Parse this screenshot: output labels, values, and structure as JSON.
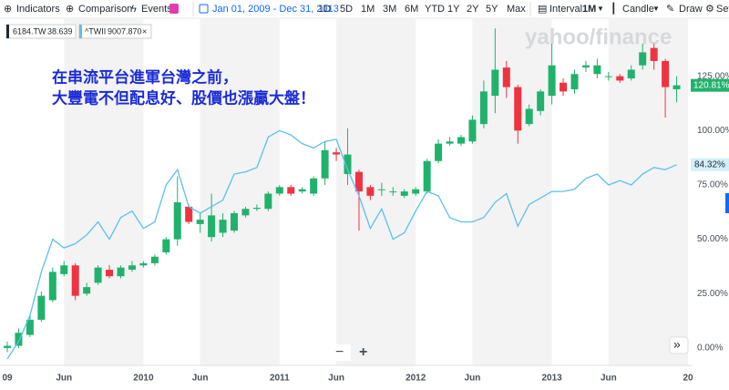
{
  "toolbar": {
    "indicators": "Indicators",
    "comparison": "Comparison",
    "events": "Events",
    "date_range": "Jan 01, 2009 - Dec 31, 2013",
    "ranges": [
      "1D",
      "5D",
      "1M",
      "3M",
      "6M",
      "YTD",
      "1Y",
      "2Y",
      "5Y",
      "Max"
    ],
    "interval_label": "Interval",
    "interval": "1M",
    "chart_type": "Candle",
    "draw": "Draw",
    "settings": "Sett"
  },
  "watermark": "yahoo/finance",
  "annotation": [
    "在串流平台進軍台灣之前，",
    "大豐電不但配息好、股價也漲贏大盤！"
  ],
  "chart_data": {
    "type": "candlestick",
    "categories": [
      "09",
      null,
      null,
      null,
      null,
      "Jun",
      null,
      null,
      null,
      null,
      null,
      null,
      "2010",
      null,
      null,
      null,
      null,
      "Jun",
      null,
      null,
      null,
      null,
      null,
      null,
      "2011",
      null,
      null,
      null,
      null,
      "Jun",
      null,
      null,
      null,
      null,
      null,
      null,
      "2012",
      null,
      null,
      null,
      null,
      "Jun",
      null,
      null,
      null,
      null,
      null,
      null,
      "2013",
      null,
      null,
      null,
      null,
      "Jun",
      null,
      null,
      null,
      null,
      null,
      null,
      "20"
    ],
    "ylim": [
      -8,
      150
    ],
    "yticks": [
      {
        "value": 0,
        "label": "0.00%"
      },
      {
        "value": 25,
        "label": "25.00%"
      },
      {
        "value": 50,
        "label": "50.00%"
      },
      {
        "value": 75,
        "label": "75.00%"
      },
      {
        "value": 100,
        "label": "100.00%"
      },
      {
        "value": 125,
        "label": "125.00%"
      }
    ],
    "grid": false,
    "series": [
      {
        "name": "6184.TW",
        "quote": 38.639,
        "color_up": "#20b26c",
        "color_down": "#ef3340",
        "open": [
          0,
          1,
          6,
          13,
          22,
          34,
          38,
          25,
          30,
          36,
          33,
          36,
          38,
          39,
          44,
          50,
          65,
          57,
          51,
          53,
          54,
          61,
          64,
          64,
          71,
          74,
          72,
          71,
          78,
          90,
          80,
          81,
          74,
          73,
          72,
          70,
          71,
          72,
          86,
          94,
          94,
          95,
          103,
          116,
          129,
          120,
          103,
          109,
          116,
          122,
          119,
          129,
          126,
          125,
          125,
          124,
          130,
          138,
          132,
          119,
          null
        ],
        "high": [
          3,
          9,
          15,
          26,
          37,
          40,
          39,
          30,
          38,
          38,
          38,
          40,
          40,
          43,
          51,
          79,
          66,
          62,
          71,
          62,
          63,
          65,
          66,
          72,
          75,
          75,
          74,
          79,
          95,
          92,
          101,
          82,
          75,
          76,
          74,
          73,
          74,
          87,
          96,
          97,
          98,
          107,
          123,
          147,
          132,
          121,
          112,
          119,
          140,
          124,
          128,
          132,
          133,
          127,
          126,
          130,
          140,
          140,
          133,
          125,
          null
        ],
        "low": [
          -2,
          0,
          5,
          12,
          21,
          33,
          22,
          24,
          29,
          32,
          32,
          35,
          37,
          38,
          43,
          47,
          57,
          53,
          49,
          51,
          53,
          60,
          63,
          63,
          70,
          70,
          71,
          70,
          75,
          86,
          75,
          54,
          68,
          70,
          70,
          69,
          70,
          71,
          85,
          93,
          93,
          94,
          101,
          108,
          115,
          94,
          102,
          107,
          112,
          116,
          117,
          127,
          124,
          123,
          122,
          123,
          128,
          128,
          106,
          113,
          null
        ],
        "close": [
          1,
          7,
          13,
          24,
          35,
          38,
          24,
          28,
          37,
          33,
          37,
          38,
          39,
          42,
          50,
          67,
          58,
          59,
          61,
          59,
          62,
          64,
          64.5,
          71,
          74,
          71,
          73,
          78,
          91,
          89,
          89,
          72,
          70,
          73,
          72,
          72,
          73,
          86,
          94,
          95,
          97,
          105,
          118,
          128,
          120,
          100,
          110,
          118,
          130,
          118,
          126,
          130,
          130,
          125,
          123,
          128,
          136,
          132,
          120,
          120.81,
          null
        ],
        "close_labels": [
          null,
          null,
          null,
          null,
          null,
          null,
          null,
          null,
          null,
          null,
          null,
          null,
          null,
          null,
          null,
          null,
          null,
          null,
          null,
          null,
          null,
          null,
          null,
          null,
          null,
          null,
          null,
          null,
          null,
          null,
          null,
          null,
          null,
          null,
          null,
          null,
          null,
          null,
          null,
          null,
          null,
          null,
          null,
          null,
          null,
          null,
          null,
          null,
          null,
          null,
          null,
          null,
          null,
          null,
          null,
          null,
          null,
          null,
          null,
          "120.81%",
          null
        ]
      },
      {
        "name": "^TWII",
        "quote": {
          "value": 9007.87,
          "label": "9007.870"
        },
        "color": "#5bc0ee",
        "values": [
          -5,
          3,
          15,
          35,
          50,
          46,
          48,
          52,
          58,
          50,
          60,
          63,
          55,
          58,
          75,
          82,
          65,
          62,
          65,
          68,
          80,
          81,
          83,
          97,
          100,
          98,
          94,
          92,
          95,
          96,
          82,
          70,
          55,
          64,
          50,
          53,
          63,
          72,
          70,
          60,
          58,
          58,
          60,
          67,
          71,
          56,
          66,
          69,
          72,
          72,
          73,
          78,
          80,
          75,
          77,
          75,
          80,
          83,
          82,
          84.32,
          null
        ],
        "value_labels": [
          null,
          null,
          null,
          null,
          null,
          null,
          null,
          null,
          null,
          null,
          null,
          null,
          null,
          null,
          null,
          null,
          null,
          null,
          null,
          null,
          null,
          null,
          null,
          null,
          null,
          null,
          null,
          null,
          null,
          null,
          null,
          null,
          null,
          null,
          null,
          null,
          null,
          null,
          null,
          null,
          null,
          null,
          null,
          null,
          null,
          null,
          null,
          null,
          null,
          null,
          null,
          null,
          null,
          null,
          null,
          null,
          null,
          null,
          null,
          "84.32%",
          null
        ]
      }
    ]
  }
}
